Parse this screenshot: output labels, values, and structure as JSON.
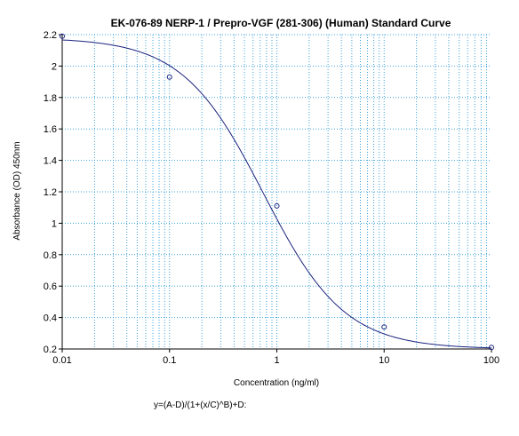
{
  "chart_data": {
    "type": "scatter",
    "title": "EK-076-89 NERP-1 / Prepro-VGF (281-306) (Human) Standard Curve",
    "xlabel": "Concentration (ng/ml)",
    "ylabel": "Absorbance (OD) 450nm",
    "x_scale": "log",
    "xlim": [
      0.01,
      100
    ],
    "ylim": [
      0.2,
      2.2
    ],
    "x_ticks": [
      "0.01",
      "0.1",
      "1",
      "10",
      "100"
    ],
    "y_ticks": [
      "0.2",
      "0.4",
      "0.6",
      "0.8",
      "1",
      "1.2",
      "1.4",
      "1.6",
      "1.8",
      "2",
      "2.2"
    ],
    "grid": true,
    "series": [
      {
        "points": [
          {
            "x": 0.01,
            "y": 2.19
          },
          {
            "x": 0.1,
            "y": 1.93
          },
          {
            "x": 1,
            "y": 1.11
          },
          {
            "x": 10,
            "y": 0.34
          },
          {
            "x": 100,
            "y": 0.21
          }
        ]
      }
    ],
    "fit_curve": {
      "model": "4PL",
      "A": 2.18,
      "B": 1.15,
      "C": 0.75,
      "D": 0.2
    },
    "formula": "y=(A-D)/(1+(x/C)^B)+D:",
    "colors": {
      "curve": "#1a237e",
      "markers": "#1a237e",
      "grid": "#3aa0d8",
      "axis": "#000000"
    }
  }
}
